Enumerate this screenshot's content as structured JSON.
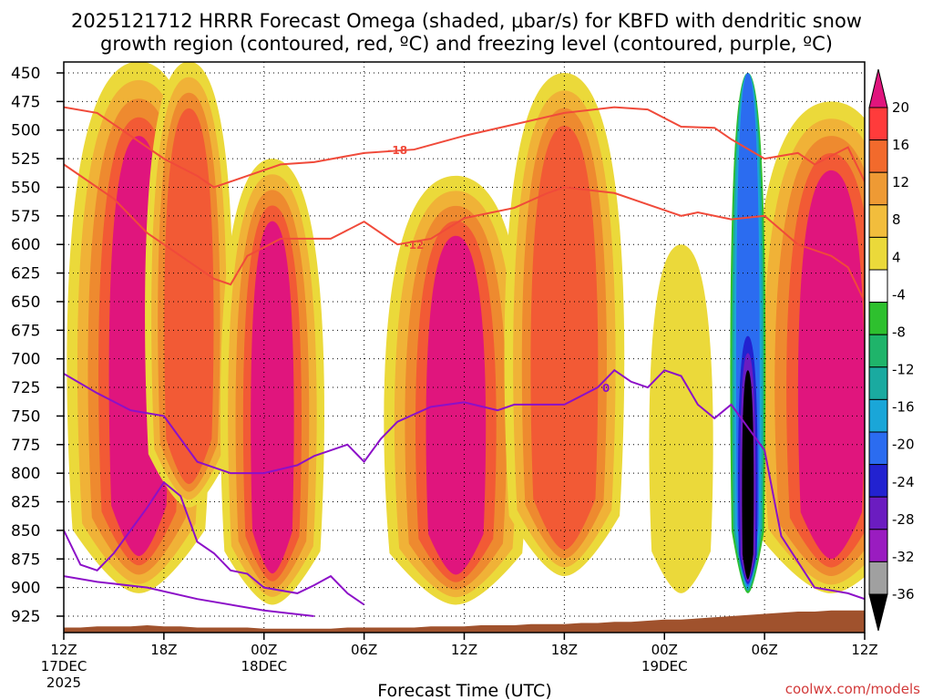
{
  "chart_data": {
    "type": "heatmap",
    "title_line1": "2025121712 HRRR Forecast Omega (shaded, μbar/s) for KBFD with dendritic snow",
    "title_line2": "growth region (contoured, red, ºC) and freezing level (contoured, purple, ºC)",
    "xlabel": "Forecast Time (UTC)",
    "x_ticks": [
      {
        "hour": 0,
        "label": "12Z",
        "sub1": "17DEC",
        "sub2": "2025"
      },
      {
        "hour": 6,
        "label": "18Z",
        "sub1": "",
        "sub2": ""
      },
      {
        "hour": 12,
        "label": "00Z",
        "sub1": "18DEC",
        "sub2": ""
      },
      {
        "hour": 18,
        "label": "06Z",
        "sub1": "",
        "sub2": ""
      },
      {
        "hour": 24,
        "label": "12Z",
        "sub1": "",
        "sub2": ""
      },
      {
        "hour": 30,
        "label": "18Z",
        "sub1": "",
        "sub2": ""
      },
      {
        "hour": 36,
        "label": "00Z",
        "sub1": "19DEC",
        "sub2": ""
      },
      {
        "hour": 42,
        "label": "06Z",
        "sub1": "",
        "sub2": ""
      },
      {
        "hour": 48,
        "label": "12Z",
        "sub1": "",
        "sub2": ""
      }
    ],
    "xlim": [
      0,
      48
    ],
    "ylim": [
      925,
      450
    ],
    "y_ticks": [
      "450",
      "475",
      "500",
      "525",
      "550",
      "575",
      "600",
      "625",
      "650",
      "675",
      "700",
      "725",
      "750",
      "775",
      "800",
      "825",
      "850",
      "875",
      "900",
      "925"
    ],
    "grid": true,
    "colorbar": {
      "ticks": [
        "20",
        "16",
        "12",
        "8",
        "4",
        "-4",
        "-8",
        "-12",
        "-16",
        "-20",
        "-24",
        "-28",
        "-32",
        "-36"
      ],
      "colors": [
        "#e0157d",
        "#ff3b3b",
        "#f26a2c",
        "#ee9a34",
        "#f2bd3c",
        "#ebd93a",
        "#ffffff",
        "#2ec02e",
        "#1fb46a",
        "#1aaaa0",
        "#1aa6d8",
        "#2b6cf0",
        "#2222d0",
        "#6b1cc0",
        "#9a1cc0",
        "#a0a0a0",
        "#000000"
      ],
      "position": "right"
    },
    "omega_levels": [
      4,
      8,
      12,
      16,
      20
    ],
    "omega_colors": [
      "#ebd93a",
      "#f0b237",
      "#ee8a2f",
      "#f25a35",
      "#e0157d"
    ],
    "omega_plumes": [
      {
        "center_hour": 4.5,
        "top_hpa": 440,
        "bottom_hpa": 905,
        "peak": 22,
        "core_width_hr": 3.6
      },
      {
        "center_hour": 7.5,
        "top_hpa": 440,
        "bottom_hpa": 830,
        "peak": 18,
        "core_width_hr": 2.2
      },
      {
        "center_hour": 12.5,
        "top_hpa": 525,
        "bottom_hpa": 915,
        "peak": 20,
        "core_width_hr": 2.6
      },
      {
        "center_hour": 23.5,
        "top_hpa": 540,
        "bottom_hpa": 915,
        "peak": 22,
        "core_width_hr": 3.6
      },
      {
        "center_hour": 30.0,
        "top_hpa": 450,
        "bottom_hpa": 890,
        "peak": 17,
        "core_width_hr": 3.0
      },
      {
        "center_hour": 37.0,
        "top_hpa": 600,
        "bottom_hpa": 905,
        "peak": 6,
        "core_width_hr": 1.6
      },
      {
        "center_hour": 46.0,
        "top_hpa": 475,
        "bottom_hpa": 905,
        "peak": 22,
        "core_width_hr": 4.0
      }
    ],
    "downward_plume": {
      "center_hour": 41.0,
      "top_hpa": 450,
      "bottom_hpa": 905,
      "peak": -36
    },
    "dgz_contours": [
      {
        "label": "-18",
        "points": [
          [
            0,
            480
          ],
          [
            2,
            485
          ],
          [
            4,
            505
          ],
          [
            6,
            525
          ],
          [
            8,
            540
          ],
          [
            9,
            550
          ],
          [
            11,
            540
          ],
          [
            13,
            530
          ],
          [
            15,
            528
          ],
          [
            18,
            520
          ],
          [
            21,
            517
          ],
          [
            24,
            505
          ],
          [
            27,
            495
          ],
          [
            30,
            485
          ],
          [
            33,
            480
          ],
          [
            35,
            482
          ],
          [
            37,
            497
          ],
          [
            39,
            498
          ],
          [
            40,
            508
          ],
          [
            42,
            525
          ],
          [
            44,
            520
          ],
          [
            45,
            530
          ],
          [
            47,
            515
          ],
          [
            48,
            545
          ]
        ],
        "label_hour": 20
      },
      {
        "label": "-12",
        "points": [
          [
            0,
            530
          ],
          [
            3,
            560
          ],
          [
            5,
            590
          ],
          [
            7,
            610
          ],
          [
            8,
            620
          ],
          [
            9,
            630
          ],
          [
            10,
            635
          ],
          [
            11,
            610
          ],
          [
            13,
            595
          ],
          [
            16,
            595
          ],
          [
            18,
            580
          ],
          [
            20,
            600
          ],
          [
            22,
            595
          ],
          [
            24,
            577
          ],
          [
            27,
            568
          ],
          [
            29,
            555
          ],
          [
            30,
            550
          ],
          [
            33,
            555
          ],
          [
            35,
            565
          ],
          [
            37,
            575
          ],
          [
            38,
            572
          ],
          [
            40,
            578
          ],
          [
            42,
            575
          ],
          [
            44,
            600
          ],
          [
            46,
            610
          ],
          [
            47,
            620
          ],
          [
            48,
            650
          ]
        ],
        "label_hour": 21
      }
    ],
    "freezing_contours": [
      {
        "label": "0",
        "points": [
          [
            0,
            713
          ],
          [
            2,
            730
          ],
          [
            4,
            745
          ],
          [
            6,
            750
          ],
          [
            7,
            770
          ],
          [
            8,
            790
          ],
          [
            10,
            800
          ],
          [
            12,
            800
          ],
          [
            14,
            793
          ],
          [
            15,
            785
          ],
          [
            16,
            780
          ],
          [
            17,
            775
          ],
          [
            18,
            790
          ],
          [
            19,
            770
          ],
          [
            20,
            755
          ],
          [
            22,
            742
          ],
          [
            24,
            738
          ],
          [
            26,
            745
          ],
          [
            27,
            740
          ],
          [
            30,
            740
          ],
          [
            32,
            725
          ],
          [
            33,
            710
          ],
          [
            34,
            720
          ],
          [
            35,
            725
          ],
          [
            36,
            710
          ],
          [
            37,
            715
          ],
          [
            38,
            740
          ],
          [
            39,
            752
          ],
          [
            40,
            740
          ],
          [
            41,
            760
          ],
          [
            42,
            780
          ],
          [
            43,
            855
          ],
          [
            45,
            900
          ],
          [
            47,
            905
          ],
          [
            48,
            910
          ]
        ],
        "label_hour": 32.5
      },
      {
        "label": "",
        "points": [
          [
            0,
            850
          ],
          [
            1,
            880
          ],
          [
            2,
            885
          ],
          [
            3,
            870
          ],
          [
            4,
            850
          ],
          [
            5,
            830
          ],
          [
            6,
            808
          ],
          [
            7,
            820
          ],
          [
            8,
            860
          ],
          [
            9,
            870
          ],
          [
            10,
            885
          ],
          [
            11,
            888
          ],
          [
            12,
            900
          ],
          [
            14,
            905
          ],
          [
            15,
            898
          ],
          [
            16,
            890
          ],
          [
            17,
            905
          ],
          [
            18,
            915
          ]
        ]
      },
      {
        "label": "",
        "points": [
          [
            0,
            890
          ],
          [
            2,
            895
          ],
          [
            5,
            900
          ],
          [
            8,
            910
          ],
          [
            12,
            920
          ],
          [
            15,
            925
          ]
        ]
      }
    ],
    "terrain_hpa": [
      935,
      935,
      934,
      934,
      934,
      933,
      934,
      934,
      935,
      935,
      935,
      935,
      936,
      936,
      936,
      936,
      936,
      935,
      935,
      935,
      935,
      935,
      934,
      934,
      934,
      933,
      933,
      933,
      932,
      932,
      932,
      931,
      931,
      930,
      930,
      929,
      928,
      928,
      927,
      926,
      925,
      924,
      923,
      922,
      921,
      921,
      920,
      920,
      920
    ]
  },
  "credit": "coolwx.com/models"
}
